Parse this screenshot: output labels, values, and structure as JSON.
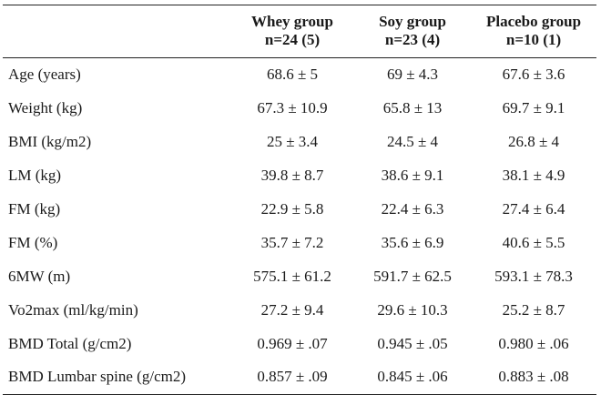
{
  "table": {
    "headers": [
      {
        "line1": "",
        "line2": ""
      },
      {
        "line1": "Whey group",
        "line2": "n=24  (5)"
      },
      {
        "line1": "Soy group",
        "line2": "n=23 (4)"
      },
      {
        "line1": "Placebo group",
        "line2": "n=10 (1)"
      }
    ],
    "rows": [
      {
        "label": "Age (years)",
        "whey": "68.6 ± 5",
        "soy": "69 ± 4.3",
        "placebo": "67.6 ± 3.6"
      },
      {
        "label": "Weight (kg)",
        "whey": "67.3 ± 10.9",
        "soy": "65.8 ± 13",
        "placebo": "69.7 ± 9.1"
      },
      {
        "label": "BMI (kg/m2)",
        "whey": "25 ± 3.4",
        "soy": "24.5 ± 4",
        "placebo": "26.8 ± 4"
      },
      {
        "label": "LM (kg)",
        "whey": "39.8 ± 8.7",
        "soy": "38.6 ± 9.1",
        "placebo": "38.1 ± 4.9"
      },
      {
        "label": "FM (kg)",
        "whey": "22.9 ± 5.8",
        "soy": "22.4 ± 6.3",
        "placebo": "27.4 ± 6.4"
      },
      {
        "label": "FM (%)",
        "whey": "35.7 ± 7.2",
        "soy": "35.6 ± 6.9",
        "placebo": "40.6 ± 5.5"
      },
      {
        "label": "6MW (m)",
        "whey": "575.1 ± 61.2",
        "soy": "591.7 ± 62.5",
        "placebo": "593.1 ± 78.3"
      },
      {
        "label": "Vo2max (ml/kg/min)",
        "whey": "27.2 ± 9.4",
        "soy": "29.6 ± 10.3",
        "placebo": "25.2 ± 8.7"
      },
      {
        "label": "BMD Total (g/cm2)",
        "whey": "0.969 ± .07",
        "soy": "0.945 ± .05",
        "placebo": "0.980 ± .06"
      },
      {
        "label": "BMD Lumbar spine (g/cm2)",
        "whey": "0.857 ± .09",
        "soy": "0.845 ± .06",
        "placebo": "0.883 ± .08"
      }
    ]
  }
}
